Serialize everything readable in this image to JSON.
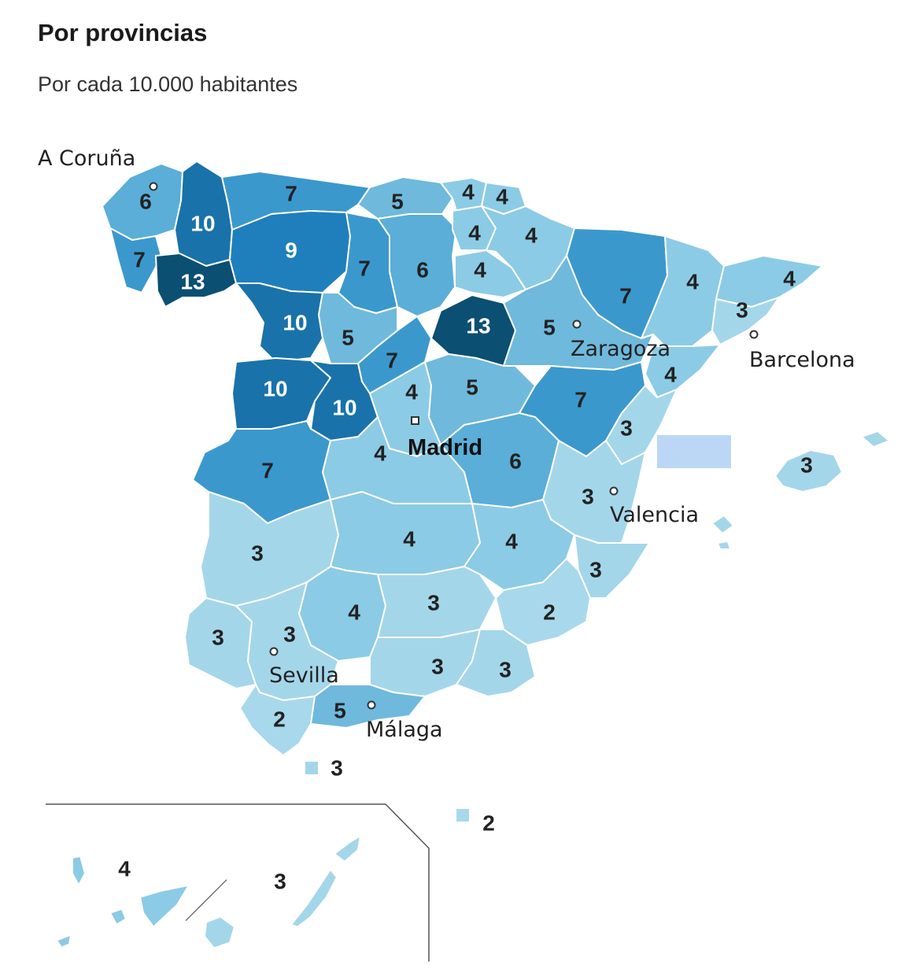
{
  "title": "Por provincias",
  "subtitle": "Por cada 10.000 habitantes",
  "colors": {
    "v2": "#a8d8ec",
    "v3": "#a4d6ea",
    "v4": "#8ccbe5",
    "v5": "#6fb9dc",
    "v6": "#5aaed8",
    "v7": "#3b98cd",
    "v9": "#1f7fbc",
    "v10": "#1a72aa",
    "v13": "#0b4f73",
    "highlight": "#bcd7f5",
    "text_dark": "#222222",
    "text_light": "#ffffff"
  },
  "cities": {
    "coruna": "A Coruña",
    "zaragoza": "Zaragoza",
    "barcelona": "Barcelona",
    "madrid": "Madrid",
    "valencia": "Valencia",
    "sevilla": "Sevilla",
    "malaga": "Málaga"
  },
  "provinces": {
    "coruna": "6",
    "lugo": "10",
    "asturias": "7",
    "cantabria": "5",
    "vizcaya": "4",
    "guipuzcoa": "4",
    "pontevedra": "7",
    "ourense": "13",
    "leon": "9",
    "palencia": "7",
    "burgos": "6",
    "alava": "4",
    "navarra": "4",
    "larioja": "4",
    "huesca": "7",
    "lleida": "4",
    "girona": "4",
    "barcelona": "3",
    "zamora": "10",
    "valladolid": "5",
    "soria": "13",
    "zaragoza": "5",
    "tarragona": "4",
    "salamanca": "10",
    "segovia": "7",
    "avila": "10",
    "madrid": "4",
    "guadalajara": "5",
    "teruel": "7",
    "castellon": "3",
    "caceres": "7",
    "toledo": "4",
    "cuenca": "6",
    "valencia": "3",
    "baleares": "3",
    "badajoz": "3",
    "ciudadreal": "4",
    "albacete": "4",
    "alicante": "3",
    "cordoba": "4",
    "jaen": "3",
    "murcia": "2",
    "huelva": "3",
    "sevilla": "3",
    "granada": "3",
    "almeria": "3",
    "cadiz": "2",
    "malaga": "5",
    "ceuta": "3",
    "melilla": "2",
    "tenerife": "4",
    "laspalmas": "3"
  }
}
